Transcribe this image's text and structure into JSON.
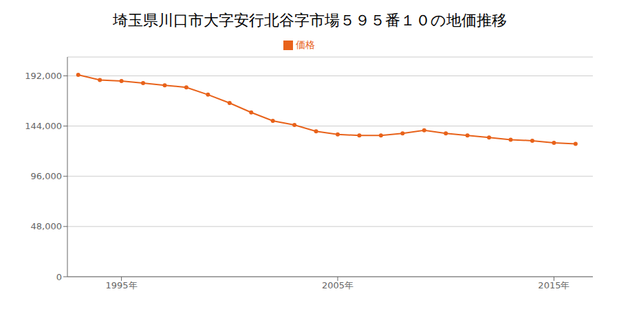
{
  "chart_data": {
    "type": "line",
    "title": "埼玉県川口市大字安行北谷字市場５９５番１０の地価推移",
    "x": [
      1993,
      1994,
      1995,
      1996,
      1997,
      1998,
      1999,
      2000,
      2001,
      2002,
      2003,
      2004,
      2005,
      2006,
      2007,
      2008,
      2009,
      2010,
      2011,
      2012,
      2013,
      2014,
      2015,
      2016
    ],
    "series": [
      {
        "name": "価格",
        "color": "#e8621a",
        "marker": "circle",
        "values": [
          193000,
          188000,
          187000,
          185000,
          183000,
          181000,
          174000,
          166000,
          157000,
          149000,
          145000,
          139000,
          136000,
          135000,
          135000,
          137000,
          140000,
          137000,
          135000,
          133000,
          131000,
          130000,
          128000,
          127000
        ]
      }
    ],
    "xlim": [
      1992.5,
      2016.8
    ],
    "xticks": [
      {
        "value": 1995,
        "label": "1995年"
      },
      {
        "value": 2005,
        "label": "2005年"
      },
      {
        "value": 2015,
        "label": "2015年"
      }
    ],
    "ylim": [
      0,
      210000
    ],
    "yticks": [
      0,
      {
        "value": 48000,
        "label": "48,000"
      },
      {
        "value": 96000,
        "label": "96,000"
      },
      {
        "value": 144000,
        "label": "144,000"
      },
      {
        "value": 192000,
        "label": "192,000"
      }
    ],
    "grid": "y",
    "legend": "top"
  }
}
